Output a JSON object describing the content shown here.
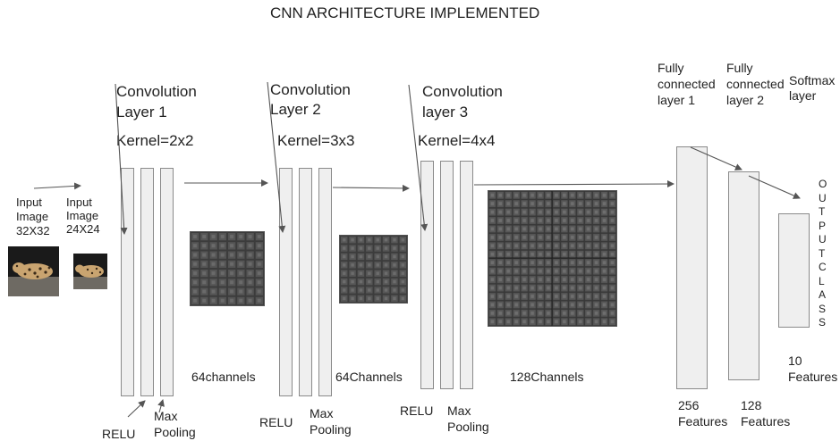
{
  "title": "CNN ARCHITECTURE IMPLEMENTED",
  "input1": {
    "line1": "Input",
    "line2": "Image",
    "line3": "32X32"
  },
  "input2": {
    "line1": "Input",
    "line2": "Image",
    "line3": "24X24"
  },
  "conv1": {
    "line1": "Convolution",
    "line2": "Layer 1",
    "kernel": "Kernel=2x2",
    "channels": "64channels",
    "relu": "RELU",
    "pool1": "Max",
    "pool2": "Pooling"
  },
  "conv2": {
    "line1": "Convolution",
    "line2": "Layer 2",
    "kernel": "Kernel=3x3",
    "channels": "64Channels",
    "relu": "RELU",
    "pool1": "Max",
    "pool2": "Pooling"
  },
  "conv3": {
    "line1": "Convolution",
    "line2": "layer 3",
    "kernel": "Kernel=4x4",
    "channels": "128Channels",
    "relu": "RELU",
    "pool1": "Max",
    "pool2": "Pooling"
  },
  "fc1": {
    "line1": "Fully",
    "line2": "connected",
    "line3": "layer 1",
    "count": "256",
    "unit": "Features"
  },
  "fc2": {
    "line1": "Fully",
    "line2": "connected",
    "line3": "layer 2",
    "count": "128",
    "unit": "Features"
  },
  "softmax": {
    "line1": "Softmax",
    "line2": "layer",
    "count": "10",
    "unit": "Features"
  },
  "output_letters": [
    "O",
    "U",
    "T",
    "P",
    "U",
    "T",
    "C",
    "L",
    "A",
    "S",
    "S"
  ],
  "colors": {
    "column_fill": "#efefef",
    "column_border": "#8a8a8a",
    "feature_map": "#2b2b2b",
    "arrow": "#555555"
  }
}
